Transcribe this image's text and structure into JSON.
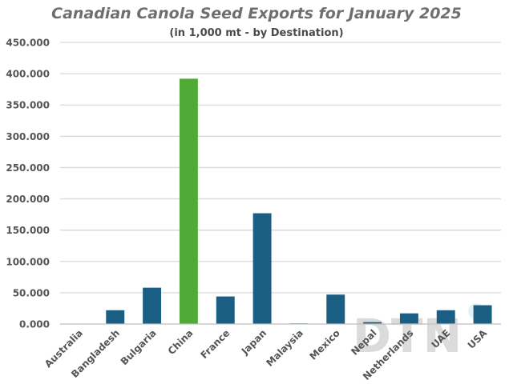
{
  "chart_data": {
    "type": "bar",
    "title": "Canadian Canola Seed Exports for January 2025",
    "subtitle": "(in 1,000 mt - by Destination)",
    "xlabel": "",
    "ylabel": "",
    "ylim": [
      0,
      450
    ],
    "yticks": [
      "0.000",
      "50.000",
      "100.000",
      "150.000",
      "200.000",
      "250.000",
      "300.000",
      "350.000",
      "400.000",
      "450.000"
    ],
    "categories": [
      "Australia",
      "Bangladesh",
      "Bulgaria",
      "China",
      "France",
      "Japan",
      "Malaysia",
      "Mexico",
      "Nepal",
      "Netherlands",
      "UAE",
      "USA"
    ],
    "values": [
      0,
      22,
      58,
      392,
      44,
      177,
      1,
      47,
      3,
      17,
      22,
      30
    ],
    "grid": true,
    "legend": "none",
    "colors": {
      "default": "#1a5e84",
      "highlight": "#4fab35",
      "highlight_category": "China"
    }
  },
  "watermark": {
    "logo_text": "DTN"
  }
}
